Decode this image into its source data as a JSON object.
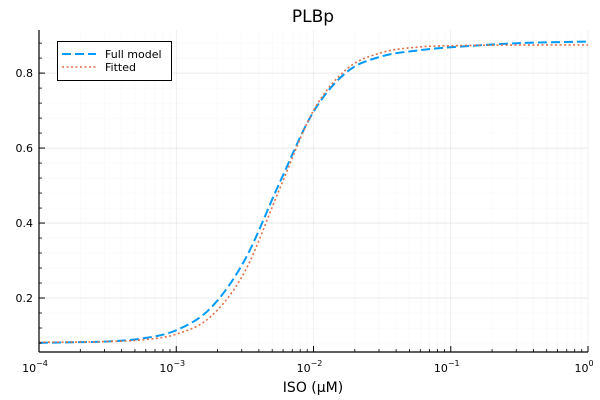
{
  "chart_data": {
    "type": "line",
    "title": "PLBp",
    "xlabel": "ISO (μM)",
    "ylabel": "",
    "xscale": "log10",
    "xlim": [
      0.0001,
      1
    ],
    "ylim": [
      0.056,
      0.915
    ],
    "grid": true,
    "legend_position": "top-left",
    "x_ticks": [
      {
        "base": "10",
        "exp": "−4",
        "value": 0.0001
      },
      {
        "base": "10",
        "exp": "−3",
        "value": 0.001
      },
      {
        "base": "10",
        "exp": "−2",
        "value": 0.01
      },
      {
        "base": "10",
        "exp": "−1",
        "value": 0.1
      },
      {
        "base": "10",
        "exp": "0",
        "value": 1
      }
    ],
    "y_ticks": [
      {
        "label": "0.2",
        "value": 0.2
      },
      {
        "label": "0.4",
        "value": 0.4
      },
      {
        "label": "0.6",
        "value": 0.6
      },
      {
        "label": "0.8",
        "value": 0.8
      }
    ],
    "log10_x": [
      -4,
      -3.75,
      -3.5,
      -3.25,
      -3,
      -2.75,
      -2.5,
      -2.25,
      -2,
      -1.75,
      -1.5,
      -1.25,
      -1,
      -0.5,
      0
    ],
    "series": [
      {
        "name": "Full model",
        "color": "#009AFA",
        "style": "dash",
        "values": [
          0.0805,
          0.082,
          0.0841,
          0.092,
          0.114,
          0.173,
          0.302,
          0.505,
          0.697,
          0.805,
          0.845,
          0.86,
          0.869,
          0.88,
          0.884
        ]
      },
      {
        "name": "Fitted",
        "color": "#E26F46",
        "style": "dot",
        "values": [
          0.082,
          0.0825,
          0.084,
          0.0885,
          0.1035,
          0.15,
          0.271,
          0.488,
          0.7,
          0.813,
          0.855,
          0.869,
          0.873,
          0.875,
          0.875
        ]
      }
    ]
  }
}
